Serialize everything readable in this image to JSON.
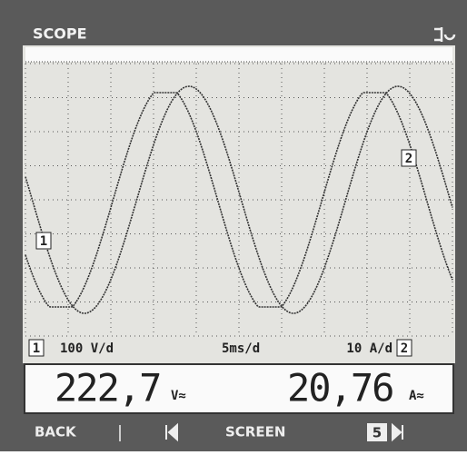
{
  "header": {
    "title": "SCOPE"
  },
  "screen": {
    "marker_1": "1",
    "marker_2": "2"
  },
  "status": {
    "ch1": "1",
    "ch1_scale": "100 V/d",
    "timebase": "5ms/d",
    "ch2_scale": "10 A/d",
    "ch2": "2"
  },
  "readings": {
    "ch1_value": "222,7",
    "ch1_unit": "V≈",
    "ch2_value": "20,76",
    "ch2_unit": "A≈"
  },
  "menu": {
    "back": "BACK",
    "screen": "SCREEN",
    "page": "5"
  }
}
